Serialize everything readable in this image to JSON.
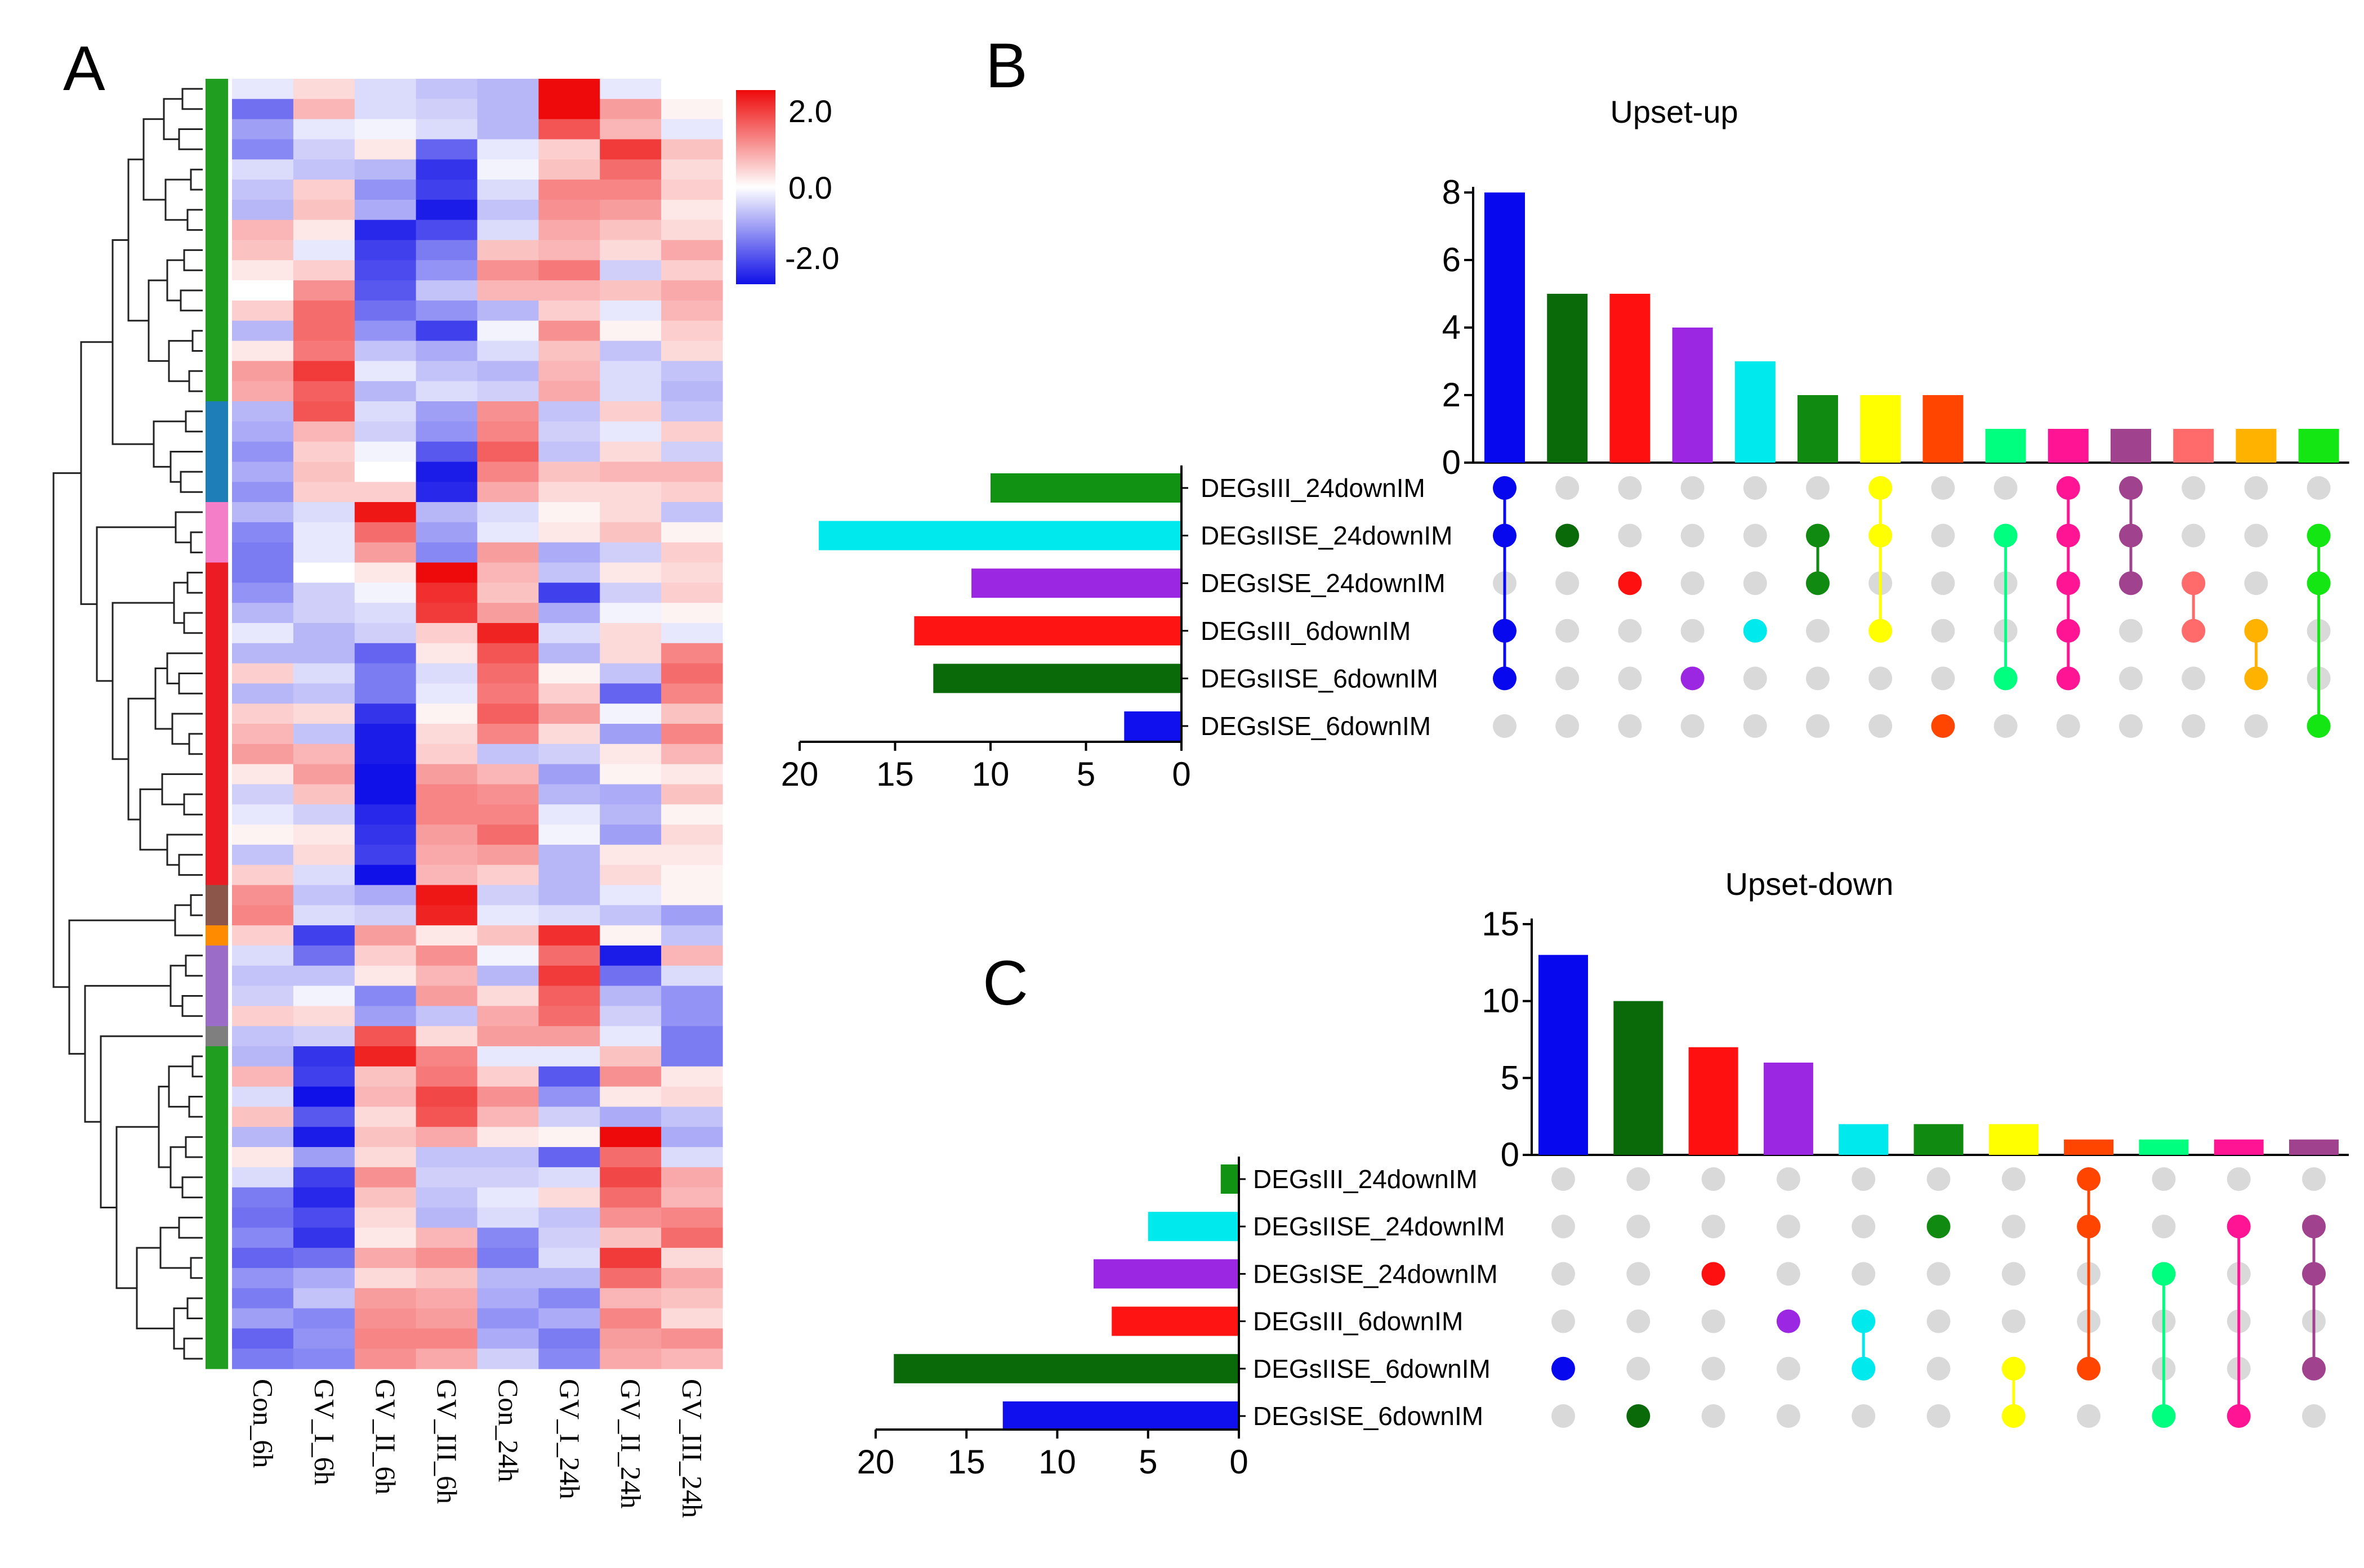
{
  "panels": {
    "a": "A",
    "b": "B",
    "c": "C"
  },
  "heatmap": {
    "columns": [
      "Con_6h",
      "GV_I_6h",
      "GV_II_6h",
      "GV_III_6h",
      "Con_24h",
      "GV_I_24h",
      "GV_II_24h",
      "GV_III_24h"
    ],
    "n_rows": 64,
    "colorbar": {
      "max_label": "2.0",
      "mid_label": "0.0",
      "min_label": "-2.0",
      "min": -2.0,
      "max": 2.0,
      "colors": {
        "low": "#1010e8",
        "mid": "#ffffff",
        "high": "#ee0a0a"
      }
    },
    "row_groups": [
      {
        "n": 16,
        "color": "#1f9e1f"
      },
      {
        "n": 5,
        "color": "#1e7fb8"
      },
      {
        "n": 3,
        "color": "#f57ec8"
      },
      {
        "n": 4,
        "color": "#ec1c24"
      },
      {
        "n": 12,
        "color": "#ec1c24"
      },
      {
        "n": 2,
        "color": "#8c564b"
      },
      {
        "n": 1,
        "color": "#ff8c00"
      },
      {
        "n": 4,
        "color": "#9b6cc8"
      },
      {
        "n": 1,
        "color": "#7f7f7f"
      },
      {
        "n": 16,
        "color": "#1f9e1f"
      }
    ],
    "values": [
      [
        -0.2,
        0.3,
        -0.3,
        -0.5,
        -0.6,
        2.0,
        -0.2,
        0.0
      ],
      [
        -1.2,
        0.6,
        -0.3,
        -0.4,
        -0.6,
        2.1,
        0.8,
        0.1
      ],
      [
        -0.8,
        -0.2,
        -0.1,
        -0.3,
        -0.6,
        1.4,
        0.6,
        -0.2
      ],
      [
        -1.0,
        -0.4,
        0.2,
        -1.3,
        -0.2,
        0.4,
        1.6,
        0.5
      ],
      [
        -0.3,
        -0.5,
        -0.6,
        -1.7,
        -0.1,
        0.5,
        1.2,
        0.3
      ],
      [
        -0.5,
        0.4,
        -0.9,
        -1.6,
        -0.3,
        1.0,
        1.0,
        0.4
      ],
      [
        -0.6,
        0.5,
        -0.7,
        -1.9,
        -0.5,
        0.9,
        0.8,
        0.2
      ],
      [
        0.6,
        0.2,
        -1.8,
        -1.5,
        -0.3,
        0.7,
        0.5,
        0.3
      ],
      [
        0.5,
        -0.2,
        -1.6,
        -1.1,
        0.5,
        0.6,
        0.3,
        0.7
      ],
      [
        0.2,
        0.4,
        -1.5,
        -0.9,
        0.9,
        1.1,
        -0.4,
        0.4
      ],
      [
        0.0,
        0.9,
        -1.4,
        -0.5,
        0.6,
        0.6,
        0.5,
        0.7
      ],
      [
        0.4,
        1.2,
        -1.2,
        -0.9,
        -0.6,
        0.4,
        -0.2,
        0.6
      ],
      [
        -0.6,
        1.2,
        -0.9,
        -1.6,
        -0.1,
        0.9,
        0.1,
        0.4
      ],
      [
        0.2,
        1.1,
        -0.5,
        -0.7,
        -0.3,
        0.5,
        -0.5,
        0.3
      ],
      [
        0.8,
        1.6,
        -0.2,
        -0.5,
        -0.6,
        0.6,
        -0.3,
        -0.5
      ],
      [
        0.7,
        1.3,
        -0.6,
        -0.3,
        -0.4,
        0.7,
        -0.3,
        -0.6
      ],
      [
        -0.6,
        1.4,
        -0.3,
        -0.8,
        0.9,
        -0.5,
        0.4,
        -0.5
      ],
      [
        -0.7,
        0.6,
        -0.4,
        -0.9,
        1.0,
        -0.4,
        -0.2,
        0.4
      ],
      [
        -0.9,
        0.4,
        -0.1,
        -1.4,
        1.3,
        -0.5,
        0.3,
        -0.4
      ],
      [
        -0.7,
        0.5,
        0.0,
        -1.9,
        1.0,
        0.5,
        0.6,
        0.6
      ],
      [
        -0.9,
        0.4,
        0.4,
        -1.8,
        0.7,
        0.3,
        0.3,
        0.4
      ],
      [
        -0.6,
        -0.3,
        1.9,
        -0.6,
        -0.3,
        0.1,
        0.3,
        -0.5
      ],
      [
        -1.0,
        -0.2,
        1.2,
        -0.8,
        -0.2,
        0.2,
        0.5,
        0.1
      ],
      [
        -1.1,
        -0.2,
        0.8,
        -1.0,
        0.8,
        -0.7,
        -0.4,
        0.4
      ],
      [
        -1.1,
        0.0,
        0.2,
        2.0,
        0.6,
        -0.5,
        0.2,
        0.3
      ],
      [
        -0.9,
        -0.4,
        -0.1,
        1.7,
        0.5,
        -1.6,
        -0.4,
        0.4
      ],
      [
        -0.6,
        -0.4,
        -0.3,
        1.6,
        0.8,
        -0.7,
        -0.1,
        0.1
      ],
      [
        -0.2,
        -0.6,
        -0.4,
        0.4,
        1.8,
        -0.3,
        0.3,
        -0.2
      ],
      [
        -0.6,
        -0.6,
        -1.3,
        0.2,
        1.4,
        -0.6,
        0.3,
        1.0
      ],
      [
        0.4,
        -0.3,
        -1.1,
        -0.3,
        1.2,
        0.1,
        -0.5,
        1.2
      ],
      [
        -0.6,
        -0.5,
        -1.1,
        -0.2,
        1.1,
        0.4,
        -1.3,
        1.0
      ],
      [
        0.4,
        0.3,
        -1.7,
        0.1,
        1.3,
        0.8,
        -0.1,
        0.5
      ],
      [
        0.6,
        -0.5,
        -1.9,
        0.3,
        1.0,
        0.3,
        -0.8,
        1.0
      ],
      [
        0.8,
        0.6,
        -1.9,
        0.4,
        -0.5,
        -0.4,
        0.2,
        0.6
      ],
      [
        0.2,
        0.8,
        -2.0,
        0.8,
        0.6,
        -0.8,
        0.1,
        0.2
      ],
      [
        -0.4,
        0.5,
        -2.0,
        1.0,
        0.9,
        -0.6,
        -0.7,
        0.5
      ],
      [
        -0.2,
        -0.4,
        -1.8,
        1.0,
        1.0,
        -0.2,
        -0.6,
        0.1
      ],
      [
        0.1,
        0.2,
        -1.7,
        0.8,
        1.2,
        -0.1,
        -0.8,
        0.3
      ],
      [
        -0.5,
        0.3,
        -1.6,
        0.7,
        0.8,
        -0.6,
        0.2,
        0.2
      ],
      [
        0.4,
        -0.3,
        -2.0,
        0.6,
        0.4,
        -0.6,
        0.3,
        0.1
      ],
      [
        0.9,
        -0.5,
        -0.7,
        1.9,
        -0.4,
        -0.6,
        -0.2,
        0.1
      ],
      [
        1.0,
        -0.3,
        -0.4,
        1.8,
        -0.2,
        -0.3,
        -0.5,
        -0.8
      ],
      [
        0.4,
        -1.6,
        0.8,
        0.2,
        0.5,
        1.7,
        0.1,
        -0.5
      ],
      [
        -0.3,
        -1.2,
        0.4,
        0.9,
        -0.1,
        1.2,
        -1.9,
        0.6
      ],
      [
        -0.5,
        -0.5,
        0.2,
        0.6,
        -0.6,
        1.6,
        -1.2,
        -0.3
      ],
      [
        -0.4,
        -0.1,
        -1.0,
        0.8,
        0.3,
        1.3,
        -0.6,
        -0.9
      ],
      [
        0.4,
        0.3,
        -0.8,
        -0.5,
        0.7,
        1.2,
        -0.4,
        -0.9
      ],
      [
        -0.5,
        -0.4,
        1.4,
        0.3,
        0.8,
        0.8,
        -0.2,
        -1.1
      ],
      [
        -0.6,
        -1.7,
        1.8,
        1.0,
        -0.2,
        -0.2,
        0.5,
        -1.1
      ],
      [
        0.6,
        -1.6,
        0.5,
        1.1,
        0.4,
        -1.4,
        0.9,
        0.2
      ],
      [
        -0.3,
        -2.0,
        0.6,
        1.5,
        0.9,
        -0.9,
        0.2,
        0.3
      ],
      [
        0.5,
        -1.4,
        0.3,
        1.4,
        0.6,
        -0.4,
        -0.7,
        -0.5
      ],
      [
        -0.6,
        -1.9,
        0.5,
        0.7,
        0.2,
        0.1,
        2.0,
        -0.7
      ],
      [
        0.2,
        -0.8,
        0.3,
        -0.5,
        -0.5,
        -1.3,
        1.2,
        -0.3
      ],
      [
        -0.3,
        -1.6,
        0.9,
        -0.4,
        -0.4,
        -0.3,
        1.5,
        0.7
      ],
      [
        -1.1,
        -1.8,
        0.5,
        -0.5,
        -0.2,
        0.3,
        1.2,
        0.6
      ],
      [
        -1.2,
        -1.5,
        0.3,
        -0.6,
        -0.3,
        -0.5,
        0.9,
        1.0
      ],
      [
        -1.0,
        -1.7,
        0.2,
        0.6,
        -1.0,
        -0.4,
        0.5,
        1.2
      ],
      [
        -1.3,
        -1.2,
        0.7,
        0.9,
        -1.1,
        -0.3,
        1.6,
        0.3
      ],
      [
        -0.9,
        -0.7,
        0.3,
        0.5,
        -0.6,
        -0.6,
        1.2,
        0.7
      ],
      [
        -1.1,
        -0.5,
        0.8,
        0.7,
        -0.7,
        -1.0,
        0.6,
        0.5
      ],
      [
        -0.8,
        -1.0,
        0.9,
        0.8,
        -0.9,
        -0.7,
        1.0,
        0.3
      ],
      [
        -1.3,
        -0.9,
        1.0,
        1.0,
        -0.7,
        -1.1,
        0.8,
        0.9
      ],
      [
        -1.1,
        -1.0,
        0.9,
        0.7,
        -0.4,
        -1.0,
        0.7,
        0.6
      ]
    ]
  },
  "upset_up": {
    "title": "Upset-up",
    "sets": [
      "DEGsIII_24downIM",
      "DEGsIISE_24downIM",
      "DEGsISE_24downIM",
      "DEGsIII_6downIM",
      "DEGsIISE_6downIM",
      "DEGsISE_6downIM"
    ],
    "set_sizes": [
      10,
      19,
      11,
      14,
      13,
      3
    ],
    "set_colors": [
      "#129212",
      "#00eaee",
      "#9b27e3",
      "#ff1414",
      "#0a6a0a",
      "#1010ee"
    ],
    "set_xlim": [
      20,
      0
    ],
    "set_ticks": [
      "20",
      "15",
      "10",
      "5",
      "0"
    ],
    "intersections": [
      {
        "size": 8,
        "color": "#0808ee",
        "members": [
          0,
          1,
          3,
          4
        ]
      },
      {
        "size": 5,
        "color": "#0a6a0a",
        "members": [
          1
        ]
      },
      {
        "size": 5,
        "color": "#ff1010",
        "members": [
          2
        ]
      },
      {
        "size": 4,
        "color": "#9b27e3",
        "members": [
          4
        ]
      },
      {
        "size": 3,
        "color": "#00eaee",
        "members": [
          3
        ]
      },
      {
        "size": 2,
        "color": "#108a10",
        "members": [
          1,
          2
        ]
      },
      {
        "size": 2,
        "color": "#ffff00",
        "members": [
          0,
          1,
          3
        ]
      },
      {
        "size": 2,
        "color": "#ff4500",
        "members": [
          5
        ]
      },
      {
        "size": 1,
        "color": "#00ff7f",
        "members": [
          1,
          4
        ]
      },
      {
        "size": 1,
        "color": "#ff1493",
        "members": [
          0,
          1,
          2,
          3,
          4
        ]
      },
      {
        "size": 1,
        "color": "#a0428e",
        "members": [
          0,
          1,
          2
        ]
      },
      {
        "size": 1,
        "color": "#ff6a6a",
        "members": [
          2,
          3
        ]
      },
      {
        "size": 1,
        "color": "#ffb300",
        "members": [
          3,
          4
        ]
      },
      {
        "size": 1,
        "color": "#14e614",
        "members": [
          1,
          2,
          5
        ]
      }
    ],
    "ylim": [
      0,
      8
    ],
    "yticks": [
      "0",
      "2",
      "4",
      "6",
      "8"
    ]
  },
  "upset_down": {
    "title": "Upset-down",
    "sets": [
      "DEGsIII_24downIM",
      "DEGsIISE_24downIM",
      "DEGsISE_24downIM",
      "DEGsIII_6downIM",
      "DEGsIISE_6downIM",
      "DEGsISE_6downIM"
    ],
    "set_sizes": [
      1,
      5,
      8,
      7,
      19,
      13
    ],
    "set_colors": [
      "#129212",
      "#00eaee",
      "#9b27e3",
      "#ff1414",
      "#0a6a0a",
      "#1010ee"
    ],
    "set_xlim": [
      20,
      0
    ],
    "set_ticks": [
      "20",
      "15",
      "10",
      "5",
      "0"
    ],
    "intersections": [
      {
        "size": 13,
        "color": "#0808ee",
        "members": [
          4
        ]
      },
      {
        "size": 10,
        "color": "#0a6a0a",
        "members": [
          5
        ]
      },
      {
        "size": 7,
        "color": "#ff1010",
        "members": [
          2
        ]
      },
      {
        "size": 6,
        "color": "#9b27e3",
        "members": [
          3
        ]
      },
      {
        "size": 2,
        "color": "#00eaee",
        "members": [
          3,
          4
        ]
      },
      {
        "size": 2,
        "color": "#108a10",
        "members": [
          1
        ]
      },
      {
        "size": 2,
        "color": "#ffff00",
        "members": [
          4,
          5
        ]
      },
      {
        "size": 1,
        "color": "#ff4500",
        "members": [
          0,
          1,
          4
        ]
      },
      {
        "size": 1,
        "color": "#00ff7f",
        "members": [
          2,
          5
        ]
      },
      {
        "size": 1,
        "color": "#ff1493",
        "members": [
          1,
          5
        ]
      },
      {
        "size": 1,
        "color": "#a0428e",
        "members": [
          1,
          2,
          4
        ]
      }
    ],
    "ylim": [
      0,
      15
    ],
    "yticks": [
      "0",
      "5",
      "10",
      "15"
    ]
  }
}
